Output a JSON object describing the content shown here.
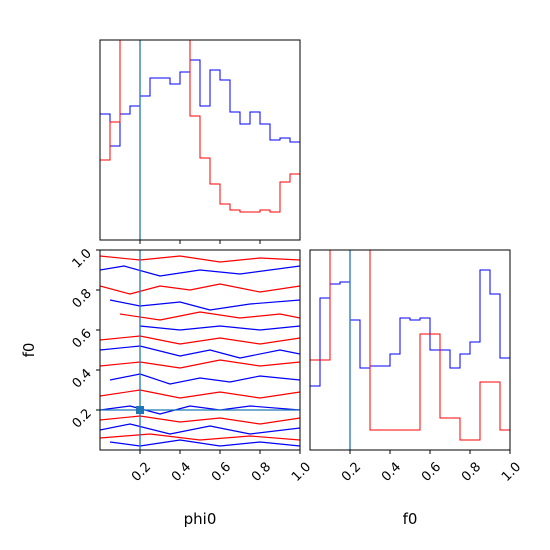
{
  "chart_data": {
    "type": "corner",
    "colors": {
      "series_a": "#0000ff",
      "series_b": "#ff0000",
      "truth": "#1f77b4"
    },
    "parameters": [
      "phi0",
      "f0"
    ],
    "truth": {
      "phi0": 0.2,
      "f0": 0.2
    },
    "phi0_hist": {
      "bins": [
        0.0,
        0.05,
        0.1,
        0.15,
        0.2,
        0.25,
        0.3,
        0.35,
        0.4,
        0.45,
        0.5,
        0.55,
        0.6,
        0.65,
        0.7,
        0.75,
        0.8,
        0.85,
        0.9,
        0.95,
        1.0
      ],
      "series": [
        {
          "color": "blue",
          "values": [
            0.63,
            0.47,
            0.63,
            0.67,
            0.72,
            0.81,
            0.81,
            0.78,
            0.84,
            0.9,
            0.67,
            0.85,
            0.8,
            0.64,
            0.58,
            0.64,
            0.58,
            0.5,
            0.51,
            0.49
          ]
        },
        {
          "color": "red",
          "values": [
            0.4,
            0.59,
            1.0,
            1.0,
            1.0,
            1.0,
            1.0,
            1.0,
            1.0,
            0.62,
            0.41,
            0.28,
            0.18,
            0.15,
            0.14,
            0.14,
            0.15,
            0.14,
            0.29,
            0.33
          ]
        }
      ]
    },
    "f0_hist": {
      "bins": [
        0.0,
        0.05,
        0.1,
        0.15,
        0.2,
        0.25,
        0.3,
        0.35,
        0.4,
        0.45,
        0.5,
        0.55,
        0.6,
        0.65,
        0.7,
        0.75,
        0.8,
        0.85,
        0.9,
        0.95,
        1.0
      ],
      "series": [
        {
          "color": "blue",
          "values": [
            0.32,
            0.76,
            0.83,
            0.84,
            0.65,
            0.41,
            0.42,
            0.42,
            0.48,
            0.66,
            0.65,
            0.66,
            0.5,
            0.5,
            0.41,
            0.48,
            0.54,
            0.9,
            0.78,
            0.46
          ]
        },
        {
          "color": "red",
          "values": [
            0.45,
            0.45,
            1.0,
            1.0,
            1.0,
            1.0,
            0.1,
            0.1,
            0.1,
            0.1,
            0.1,
            0.58,
            0.58,
            0.16,
            0.16,
            0.05,
            0.05,
            0.34,
            0.34,
            0.1
          ]
        }
      ]
    },
    "contours_2d": {
      "x": "phi0",
      "y": "f0",
      "xlim": [
        0.0,
        1.0
      ],
      "ylim": [
        0.0,
        1.0
      ],
      "series": [
        {
          "color": "blue",
          "lines": [
            [
              [
                0.0,
                0.9
              ],
              [
                0.12,
                0.92
              ],
              [
                0.3,
                0.87
              ],
              [
                0.5,
                0.9
              ],
              [
                0.7,
                0.88
              ],
              [
                1.0,
                0.92
              ]
            ],
            [
              [
                0.05,
                0.75
              ],
              [
                0.2,
                0.72
              ],
              [
                0.4,
                0.74
              ],
              [
                0.55,
                0.7
              ],
              [
                0.75,
                0.73
              ],
              [
                1.0,
                0.75
              ]
            ],
            [
              [
                0.2,
                0.62
              ],
              [
                0.4,
                0.6
              ],
              [
                0.6,
                0.62
              ],
              [
                0.8,
                0.6
              ],
              [
                1.0,
                0.62
              ]
            ],
            [
              [
                0.0,
                0.5
              ],
              [
                0.2,
                0.52
              ],
              [
                0.4,
                0.47
              ],
              [
                0.55,
                0.5
              ],
              [
                0.7,
                0.46
              ],
              [
                0.9,
                0.5
              ],
              [
                1.0,
                0.48
              ]
            ],
            [
              [
                0.05,
                0.35
              ],
              [
                0.2,
                0.38
              ],
              [
                0.35,
                0.33
              ],
              [
                0.5,
                0.36
              ],
              [
                0.65,
                0.34
              ],
              [
                0.8,
                0.37
              ],
              [
                1.0,
                0.35
              ]
            ],
            [
              [
                0.0,
                0.2
              ],
              [
                0.15,
                0.22
              ],
              [
                0.3,
                0.18
              ],
              [
                0.45,
                0.22
              ],
              [
                0.6,
                0.2
              ],
              [
                0.75,
                0.22
              ],
              [
                1.0,
                0.2
              ]
            ],
            [
              [
                0.0,
                0.1
              ],
              [
                0.15,
                0.13
              ],
              [
                0.35,
                0.08
              ],
              [
                0.55,
                0.12
              ],
              [
                0.75,
                0.08
              ],
              [
                1.0,
                0.11
              ]
            ],
            [
              [
                0.05,
                0.04
              ],
              [
                0.2,
                0.02
              ],
              [
                0.4,
                0.05
              ],
              [
                0.6,
                0.02
              ],
              [
                0.8,
                0.04
              ],
              [
                1.0,
                0.02
              ]
            ]
          ]
        },
        {
          "color": "red",
          "lines": [
            [
              [
                0.0,
                0.97
              ],
              [
                0.2,
                0.95
              ],
              [
                0.4,
                0.97
              ],
              [
                0.6,
                0.94
              ],
              [
                0.8,
                0.96
              ],
              [
                1.0,
                0.95
              ]
            ],
            [
              [
                0.0,
                0.82
              ],
              [
                0.15,
                0.78
              ],
              [
                0.3,
                0.82
              ],
              [
                0.45,
                0.8
              ],
              [
                0.6,
                0.83
              ],
              [
                0.8,
                0.79
              ],
              [
                1.0,
                0.82
              ]
            ],
            [
              [
                0.1,
                0.68
              ],
              [
                0.3,
                0.65
              ],
              [
                0.5,
                0.69
              ],
              [
                0.7,
                0.66
              ],
              [
                0.9,
                0.68
              ],
              [
                1.0,
                0.66
              ]
            ],
            [
              [
                0.0,
                0.55
              ],
              [
                0.2,
                0.57
              ],
              [
                0.4,
                0.53
              ],
              [
                0.6,
                0.56
              ],
              [
                0.8,
                0.53
              ],
              [
                1.0,
                0.56
              ]
            ],
            [
              [
                0.0,
                0.42
              ],
              [
                0.2,
                0.44
              ],
              [
                0.4,
                0.41
              ],
              [
                0.6,
                0.45
              ],
              [
                0.8,
                0.42
              ],
              [
                1.0,
                0.44
              ]
            ],
            [
              [
                0.0,
                0.27
              ],
              [
                0.2,
                0.3
              ],
              [
                0.4,
                0.26
              ],
              [
                0.6,
                0.29
              ],
              [
                0.8,
                0.26
              ],
              [
                1.0,
                0.29
              ]
            ],
            [
              [
                0.0,
                0.15
              ],
              [
                0.2,
                0.17
              ],
              [
                0.4,
                0.14
              ],
              [
                0.6,
                0.16
              ],
              [
                0.8,
                0.13
              ],
              [
                1.0,
                0.16
              ]
            ],
            [
              [
                0.0,
                0.06
              ],
              [
                0.25,
                0.08
              ],
              [
                0.5,
                0.05
              ],
              [
                0.75,
                0.07
              ],
              [
                1.0,
                0.05
              ]
            ]
          ]
        }
      ]
    },
    "axes": {
      "top_hist_xticks": [
        0.2,
        0.4,
        0.6,
        0.8
      ],
      "twod_xticks": [
        0.2,
        0.4,
        0.6,
        0.8,
        1.0
      ],
      "twod_xtick_labels": [
        "0.2",
        "0.4",
        "0.6",
        "0.8",
        "1.0"
      ],
      "twod_yticks": [
        0.2,
        0.4,
        0.6,
        0.8,
        1.0
      ],
      "twod_ytick_labels": [
        "0.2",
        "0.4",
        "0.6",
        "0.8",
        "1.0"
      ],
      "f0_hist_xticks": [
        0.2,
        0.4,
        0.6,
        0.8,
        1.0
      ],
      "f0_hist_xtick_labels": [
        "0.2",
        "0.4",
        "0.6",
        "0.8",
        "1.0"
      ],
      "xlabel_2d": "phi0",
      "ylabel_2d": "f0",
      "xlabel_f0hist": "f0"
    }
  }
}
